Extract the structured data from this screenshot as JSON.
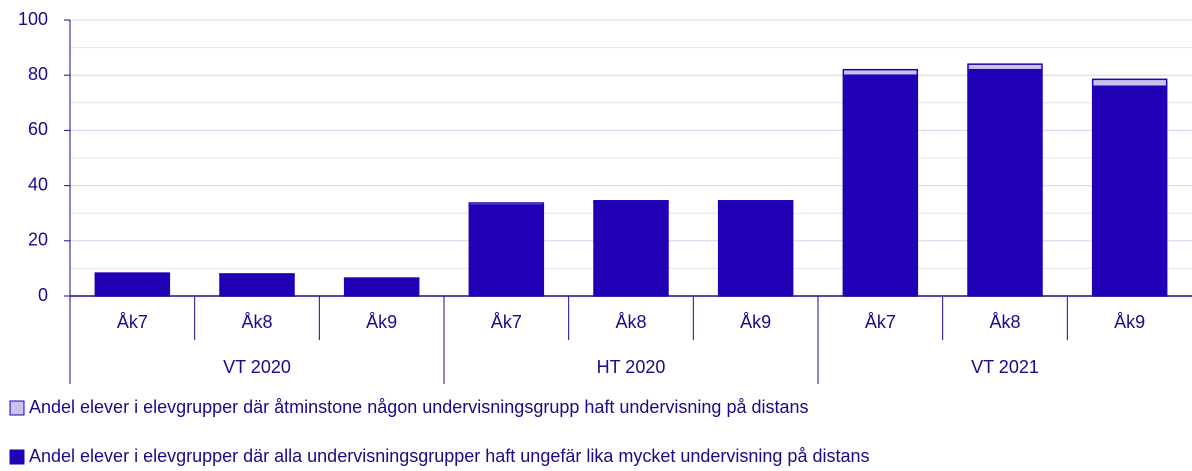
{
  "chart_data": {
    "type": "stacked_bar",
    "categories": [
      "Åk7",
      "Åk8",
      "Åk9",
      "Åk7",
      "Åk8",
      "Åk9",
      "Åk7",
      "Åk8",
      "Åk9"
    ],
    "groups": [
      "VT 2020",
      "HT 2020",
      "VT 2021"
    ],
    "series": [
      {
        "name": "Andel elever i elevgrupper där alla undervisningsgrupper haft ungefär lika mycket undervisning på distans",
        "color": "#2200b5",
        "values": [
          8,
          7.7,
          6.2,
          33,
          34,
          34,
          80,
          82,
          76
        ]
      },
      {
        "name": "Andel elever i elevgrupper där åtminstone någon undervisningsgrupp haft undervisning på distans",
        "color": "#c9c3f0",
        "values": [
          0.3,
          0.3,
          0.3,
          0.7,
          0.5,
          0.5,
          2,
          2,
          2.5
        ]
      }
    ],
    "ylim": [
      0,
      100
    ],
    "yticks": [
      0,
      20,
      40,
      60,
      80,
      100
    ],
    "minor_yticks": [
      10,
      30,
      50,
      70,
      90
    ],
    "grid": true
  }
}
